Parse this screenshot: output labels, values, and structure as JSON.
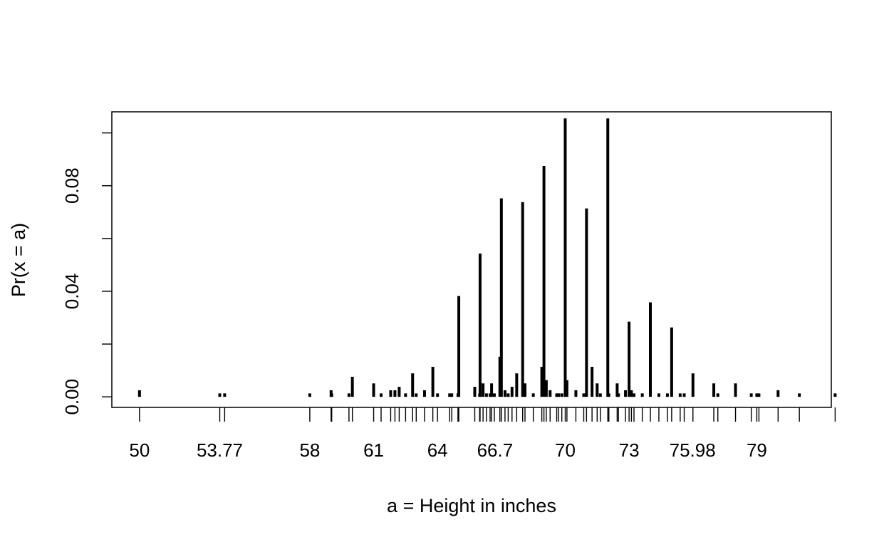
{
  "chart_data": {
    "type": "bar",
    "title": "",
    "xlabel": "a = Height in inches",
    "ylabel": "Pr(x = a)",
    "xlim": [
      48.7,
      82.5
    ],
    "ylim": [
      -0.004,
      0.108
    ],
    "x_tick_labels": [
      {
        "value": 50,
        "label": "50"
      },
      {
        "value": 53.77,
        "label": "53.77"
      },
      {
        "value": 58,
        "label": "58"
      },
      {
        "value": 61,
        "label": "61"
      },
      {
        "value": 64,
        "label": "64"
      },
      {
        "value": 66.7,
        "label": "66.7"
      },
      {
        "value": 70,
        "label": "70"
      },
      {
        "value": 73,
        "label": "73"
      },
      {
        "value": 75.98,
        "label": "75.98"
      },
      {
        "value": 79,
        "label": "79"
      }
    ],
    "y_tick_labels": [
      {
        "value": 0.0,
        "label": "0.00"
      },
      {
        "value": 0.04,
        "label": "0.04"
      },
      {
        "value": 0.08,
        "label": "0.08"
      }
    ],
    "y_minor_ticks": [
      0.02,
      0.06,
      0.1
    ],
    "rug": [
      50,
      53.77,
      54,
      58,
      59,
      59.03,
      59.84,
      60,
      61,
      61.35,
      61.8,
      62,
      62.2,
      62.5,
      62.83,
      63,
      63.39,
      63.78,
      64,
      64.57,
      64.67,
      64.96,
      65,
      65.75,
      65.98,
      66,
      66.14,
      66.3,
      66.47,
      66.54,
      66.67,
      66.93,
      67,
      67.17,
      67.32,
      67.5,
      67.72,
      68,
      68.11,
      68.5,
      68.9,
      69,
      69.11,
      69.29,
      69.6,
      69.69,
      69.84,
      70,
      70.08,
      70.5,
      70.87,
      71,
      71.26,
      71.5,
      71.65,
      72,
      72.05,
      72.44,
      72.5,
      72.83,
      73,
      73.11,
      73.23,
      73.62,
      74,
      74.4,
      74.8,
      75,
      75.4,
      75.59,
      76,
      76.98,
      77.17,
      78,
      78.74,
      79,
      79.1,
      80,
      81,
      82.68
    ],
    "series": [
      {
        "x": [
          50,
          53.77,
          54,
          58,
          59,
          59.03,
          59.84,
          60,
          61,
          61.35,
          61.8,
          62,
          62.2,
          62.5,
          62.83,
          63,
          63.39,
          63.78,
          64,
          64.57,
          64.67,
          64.96,
          65,
          65.75,
          65.98,
          66,
          66.14,
          66.3,
          66.47,
          66.54,
          66.67,
          66.93,
          67,
          67.17,
          67.32,
          67.5,
          67.72,
          68,
          68.11,
          68.5,
          68.9,
          69,
          69.11,
          69.29,
          69.6,
          69.69,
          69.84,
          70,
          70.08,
          70.5,
          70.87,
          71,
          71.26,
          71.5,
          71.65,
          72,
          72.05,
          72.44,
          72.5,
          72.83,
          73,
          73.11,
          73.23,
          73.62,
          74,
          74.4,
          74.8,
          75,
          75.4,
          75.59,
          76,
          76.98,
          77.17,
          78,
          78.74,
          79,
          79.1,
          80,
          81,
          82.68
        ],
        "values": [
          0.0025,
          0.0013,
          0.0013,
          0.0013,
          0.0025,
          0.0013,
          0.0013,
          0.0076,
          0.0051,
          0.0013,
          0.0025,
          0.0025,
          0.0038,
          0.0013,
          0.0089,
          0.0013,
          0.0025,
          0.0114,
          0.0013,
          0.0013,
          0.0013,
          0.0013,
          0.0382,
          0.0038,
          0.0013,
          0.0543,
          0.0051,
          0.0013,
          0.0013,
          0.0051,
          0.0013,
          0.0152,
          0.0752,
          0.0025,
          0.0013,
          0.0038,
          0.0089,
          0.0738,
          0.0051,
          0.0013,
          0.0114,
          0.0875,
          0.0063,
          0.0025,
          0.0013,
          0.0013,
          0.0013,
          0.1055,
          0.0063,
          0.0025,
          0.0013,
          0.0714,
          0.0114,
          0.0051,
          0.0013,
          0.1055,
          0.0013,
          0.0051,
          0.0013,
          0.0025,
          0.0285,
          0.0025,
          0.0013,
          0.0013,
          0.0358,
          0.0013,
          0.0013,
          0.0263,
          0.0013,
          0.0013,
          0.0089,
          0.0051,
          0.0013,
          0.0051,
          0.0013,
          0.0013,
          0.0013,
          0.0025,
          0.0013,
          0.0013
        ]
      }
    ]
  }
}
